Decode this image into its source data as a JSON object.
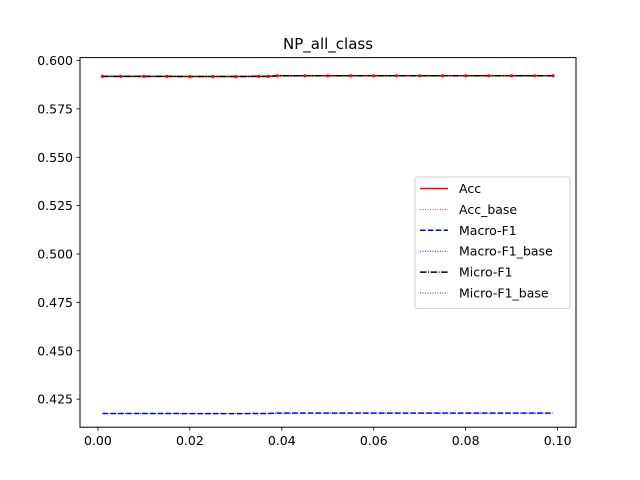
{
  "chart_data": {
    "type": "line",
    "title": "NP_all_class",
    "xlabel": "",
    "ylabel": "",
    "xlim": [
      -0.0039,
      0.104
    ],
    "ylim": [
      0.4105,
      0.6015
    ],
    "x_ticks": [
      "0.00",
      "0.02",
      "0.04",
      "0.06",
      "0.08",
      "0.10"
    ],
    "x_tick_values": [
      0.0,
      0.02,
      0.04,
      0.06,
      0.08,
      0.1
    ],
    "y_ticks": [
      "0.425",
      "0.450",
      "0.475",
      "0.500",
      "0.525",
      "0.550",
      "0.575",
      "0.600"
    ],
    "y_tick_values": [
      0.425,
      0.45,
      0.475,
      0.5,
      0.525,
      0.55,
      0.575,
      0.6
    ],
    "grid": false,
    "legend_position": "center-right",
    "x": [
      0.001,
      0.005,
      0.01,
      0.015,
      0.02,
      0.025,
      0.03,
      0.035,
      0.037,
      0.039,
      0.045,
      0.05,
      0.055,
      0.06,
      0.065,
      0.07,
      0.075,
      0.08,
      0.085,
      0.09,
      0.095,
      0.099
    ],
    "series": [
      {
        "name": "Acc",
        "color": "#ff0000",
        "style": "solid",
        "values": [
          0.5918,
          0.5918,
          0.5918,
          0.5918,
          0.5917,
          0.5917,
          0.5917,
          0.5918,
          0.5918,
          0.5921,
          0.5921,
          0.5921,
          0.5921,
          0.5921,
          0.5921,
          0.5921,
          0.5921,
          0.5921,
          0.5921,
          0.5921,
          0.5921,
          0.5921
        ]
      },
      {
        "name": "Acc_base",
        "color": "#ff0000",
        "style": "dotted",
        "values": [
          0.5918,
          0.5918,
          0.5918,
          0.5918,
          0.5917,
          0.5917,
          0.5917,
          0.5918,
          0.5918,
          0.5921,
          0.5921,
          0.5921,
          0.5921,
          0.5921,
          0.5921,
          0.5921,
          0.5921,
          0.5921,
          0.5921,
          0.5921,
          0.5921,
          0.5921
        ]
      },
      {
        "name": "Macro-F1",
        "color": "#0000ff",
        "style": "dashed",
        "values": [
          0.4176,
          0.4176,
          0.4176,
          0.4176,
          0.4175,
          0.4175,
          0.4175,
          0.4176,
          0.4176,
          0.4178,
          0.4178,
          0.4178,
          0.4178,
          0.4178,
          0.4178,
          0.4178,
          0.4178,
          0.4178,
          0.4178,
          0.4178,
          0.4178,
          0.4178
        ]
      },
      {
        "name": "Macro-F1_base",
        "color": "#0000ff",
        "style": "dotted",
        "values": [
          0.4176,
          0.4176,
          0.4176,
          0.4176,
          0.4175,
          0.4175,
          0.4175,
          0.4176,
          0.4176,
          0.4178,
          0.4178,
          0.4178,
          0.4178,
          0.4178,
          0.4178,
          0.4178,
          0.4178,
          0.4178,
          0.4178,
          0.4178,
          0.4178,
          0.4178
        ]
      },
      {
        "name": "Micro-F1",
        "color": "#000000",
        "style": "dashdot",
        "values": [
          0.5918,
          0.5918,
          0.5918,
          0.5918,
          0.5917,
          0.5917,
          0.5917,
          0.5918,
          0.5918,
          0.5921,
          0.5921,
          0.5921,
          0.5921,
          0.5921,
          0.5921,
          0.5921,
          0.5921,
          0.5921,
          0.5921,
          0.5921,
          0.5921,
          0.5921
        ]
      },
      {
        "name": "Micro-F1_base",
        "color": "#000000",
        "style": "dotted",
        "values": [
          0.5918,
          0.5918,
          0.5918,
          0.5918,
          0.5917,
          0.5917,
          0.5917,
          0.5918,
          0.5918,
          0.5921,
          0.5921,
          0.5921,
          0.5921,
          0.5921,
          0.5921,
          0.5921,
          0.5921,
          0.5921,
          0.5921,
          0.5921,
          0.5921,
          0.5921
        ]
      }
    ]
  }
}
